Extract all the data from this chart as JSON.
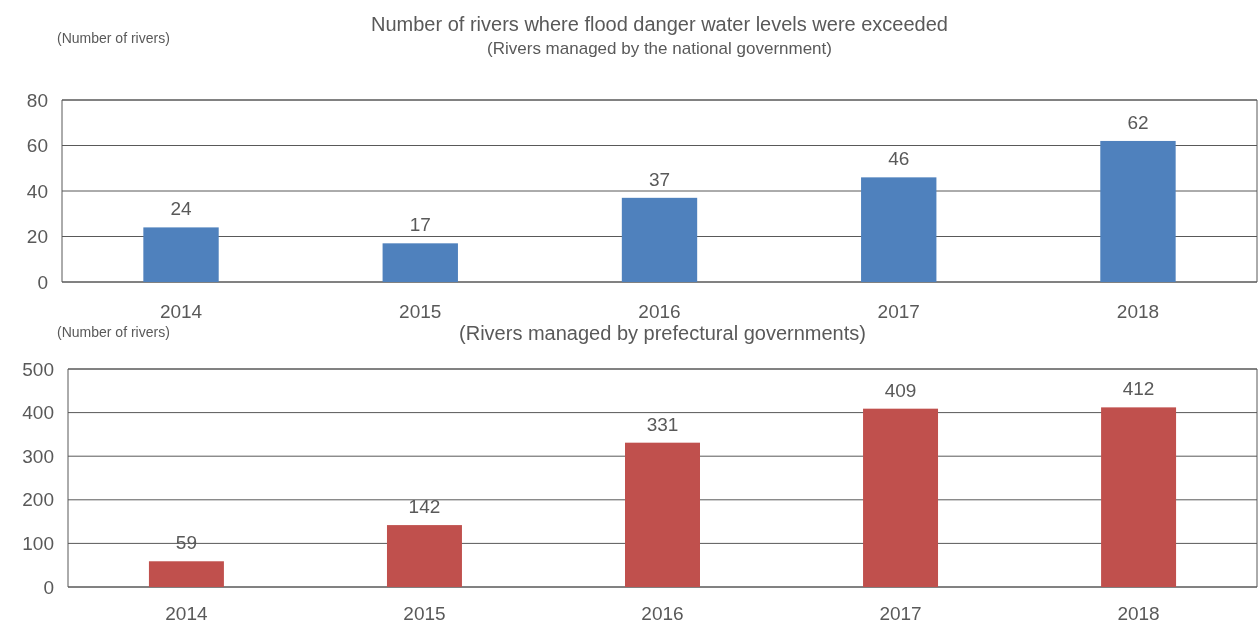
{
  "chart_data": [
    {
      "type": "bar",
      "title": "Number of rivers where flood danger water levels were exceeded",
      "subtitle": "(Rivers managed by the national government)",
      "ylabel": "(Number of rivers)",
      "categories": [
        "2014",
        "2015",
        "2016",
        "2017",
        "2018"
      ],
      "values": [
        24,
        17,
        37,
        46,
        62
      ],
      "color": "#4f81bd",
      "ylim": [
        0,
        80
      ],
      "yticks": [
        0,
        20,
        40,
        60,
        80
      ],
      "grid": "y",
      "data_labels": true
    },
    {
      "type": "bar",
      "title": "(Rivers managed by prefectural governments)",
      "ylabel": "(Number of rivers)",
      "categories": [
        "2014",
        "2015",
        "2016",
        "2017",
        "2018"
      ],
      "values": [
        59,
        142,
        331,
        409,
        412
      ],
      "color": "#c0504d",
      "ylim": [
        0,
        500
      ],
      "yticks": [
        0,
        100,
        200,
        300,
        400,
        500
      ],
      "grid": "y",
      "data_labels": true
    }
  ]
}
